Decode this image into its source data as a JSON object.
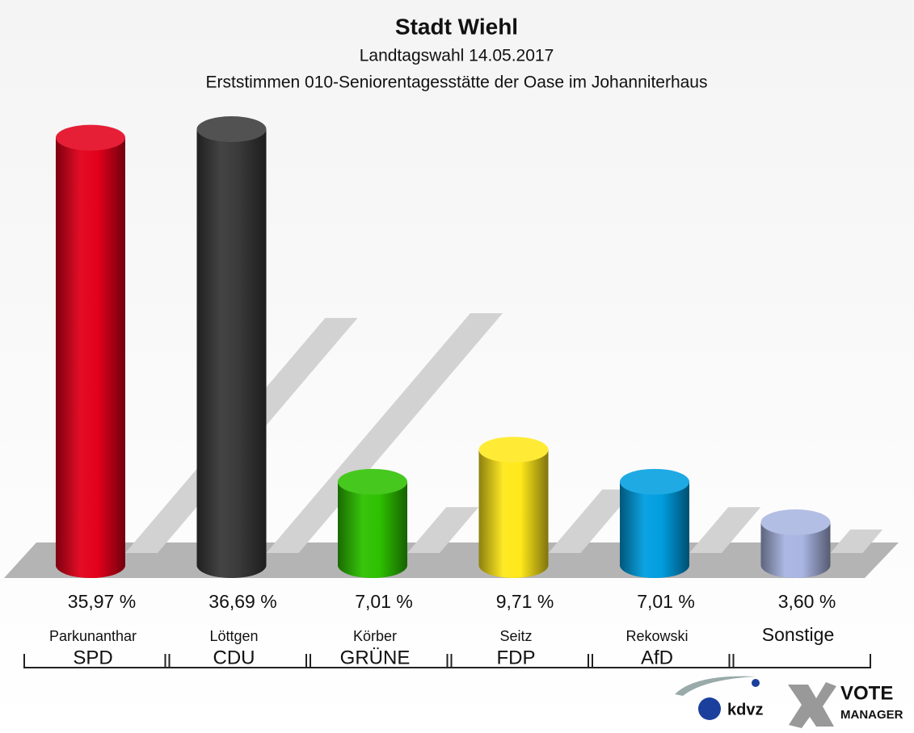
{
  "chart_data": {
    "type": "bar3d",
    "title": "Stadt Wiehl",
    "subtitle": "Landtagswahl 14.05.2017",
    "subtitle2": "Erststimmen 010-Seniorentagesstätte der Oase im Johanniterhaus",
    "categories": [
      "SPD",
      "CDU",
      "GRÜNE",
      "FDP",
      "AfD",
      "Sonstige"
    ],
    "candidates": [
      "Parkunanthar",
      "Löttgen",
      "Körber",
      "Seitz",
      "Rekowski",
      null
    ],
    "values": [
      35.97,
      36.69,
      7.01,
      9.71,
      7.01,
      3.6
    ],
    "value_labels": [
      "35,97 %",
      "36,69 %",
      "7,01 %",
      "9,71 %",
      "7,01 %",
      "3,60 %"
    ],
    "colors": [
      "#e3001b",
      "#3a3a3a",
      "#2ec100",
      "#ffe81a",
      "#009ee0",
      "#a9b5e2"
    ],
    "logo": {
      "brand": "kdvz",
      "vote": "VOTE",
      "manager": "MANAGER"
    }
  }
}
